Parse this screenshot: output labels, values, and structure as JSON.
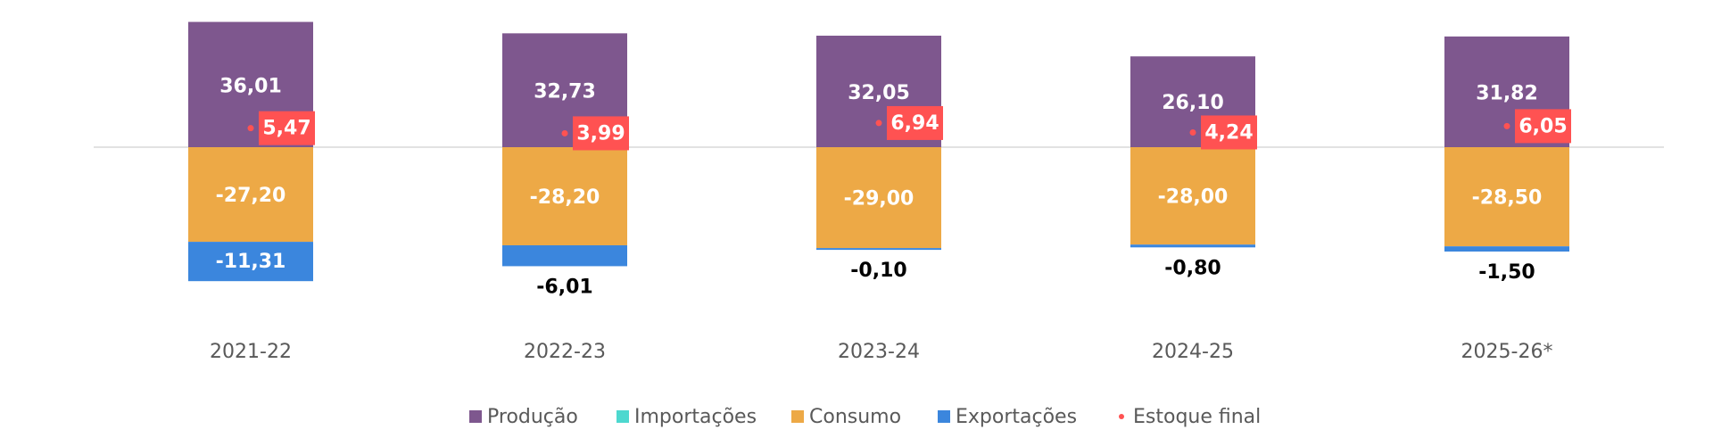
{
  "colors": {
    "producao": "#7E578E",
    "importacoes": "#4DD8CF",
    "consumo": "#EDA946",
    "exportacoes": "#3B86DD",
    "estoque": "#FF5252",
    "zero_line": "#D9D9D9",
    "category_text": "#595959",
    "value_text_dark": "#000000",
    "value_text_light": "#FFFFFF"
  },
  "chart_data": {
    "type": "bar",
    "stacked": true,
    "categories": [
      "2021-22",
      "2022-23",
      "2023-24",
      "2024-25",
      "2025-26*"
    ],
    "series": [
      {
        "key": "producao",
        "name": "Produção",
        "values": [
          36.01,
          32.73,
          32.05,
          26.1,
          31.82
        ]
      },
      {
        "key": "importacoes",
        "name": "Importações",
        "values": [
          0,
          0,
          0,
          0,
          0
        ]
      },
      {
        "key": "consumo",
        "name": "Consumo",
        "values": [
          -27.2,
          -28.2,
          -29.0,
          -28.0,
          -28.5
        ]
      },
      {
        "key": "exportacoes",
        "name": "Exportações",
        "values": [
          -11.31,
          -6.01,
          -0.1,
          -0.8,
          -1.5
        ]
      }
    ],
    "points": {
      "key": "estoque",
      "name": "Estoque final",
      "values": [
        5.47,
        3.99,
        6.94,
        4.24,
        6.05
      ]
    },
    "value_labels": {
      "producao": [
        "36,01",
        "32,73",
        "32,05",
        "26,10",
        "31,82"
      ],
      "consumo": [
        "-27,20",
        "-28,20",
        "-29,00",
        "-28,00",
        "-28,50"
      ],
      "exportacoes": [
        "-11,31",
        "-6,01",
        "-0,10",
        "-0,80",
        "-1,50"
      ],
      "estoque": [
        "5,47",
        "3,99",
        "6,94",
        "4,24",
        "6,05"
      ]
    },
    "ylim": [
      -45,
      45
    ],
    "grid": false,
    "legend": "bottom",
    "legend_entries": [
      {
        "key": "producao",
        "label": "Produção",
        "marker": "square"
      },
      {
        "key": "importacoes",
        "label": "Importações",
        "marker": "square"
      },
      {
        "key": "consumo",
        "label": "Consumo",
        "marker": "square"
      },
      {
        "key": "exportacoes",
        "label": "Exportações",
        "marker": "square"
      },
      {
        "key": "estoque",
        "label": "Estoque final",
        "marker": "dot"
      }
    ]
  }
}
